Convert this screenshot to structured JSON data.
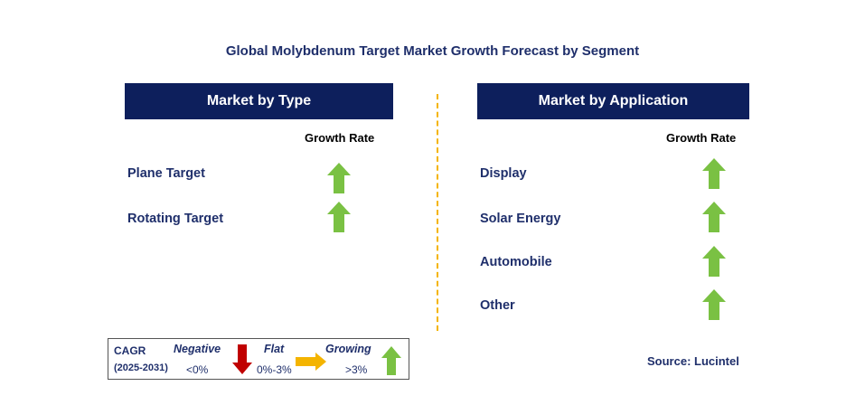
{
  "title": "Global Molybdenum Target Market Growth Forecast by Segment",
  "colors": {
    "header_bg": "#0d1f5c",
    "text_navy": "#1f2f6b",
    "divider": "#f4b400",
    "up_arrow": "#7ac143",
    "down_arrow": "#c00000",
    "flat_arrow": "#f4b400"
  },
  "left_panel": {
    "header": "Market by Type",
    "growth_label": "Growth Rate",
    "segments": [
      {
        "label": "Plane Target",
        "trend": "up-arrow-icon"
      },
      {
        "label": "Rotating Target",
        "trend": "up-arrow-icon"
      }
    ]
  },
  "right_panel": {
    "header": "Market by Application",
    "growth_label": "Growth Rate",
    "segments": [
      {
        "label": "Display",
        "trend": "up-arrow-icon"
      },
      {
        "label": "Solar Energy",
        "trend": "up-arrow-icon"
      },
      {
        "label": "Automobile",
        "trend": "up-arrow-icon"
      },
      {
        "label": "Other",
        "trend": "up-arrow-icon"
      }
    ]
  },
  "legend": {
    "cagr": "CAGR",
    "period": "(2025-2031)",
    "negative_label": "Negative",
    "negative_range": "<0%",
    "flat_label": "Flat",
    "flat_range": "0%-3%",
    "growing_label": "Growing",
    "growing_range": ">3%"
  },
  "source": "Source: Lucintel"
}
